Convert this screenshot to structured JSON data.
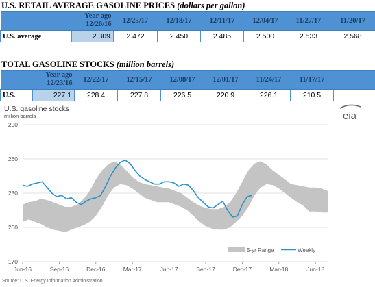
{
  "prices": {
    "title_main": "U.S. RETAIL AVERAGE GASOLINE PRICES",
    "title_unit": "(dollars per gallon)",
    "year_ago_label": "Year ago",
    "year_ago_date": "12/26/16",
    "dates": [
      "12/25/17",
      "12/18/17",
      "12/11/17",
      "12/04/17",
      "11/27/17",
      "11/20/17"
    ],
    "row_label": "U.S. average",
    "year_ago_value": "2.309",
    "values": [
      "2.472",
      "2.450",
      "2.485",
      "2.500",
      "2.533",
      "2.568"
    ]
  },
  "stocks": {
    "title_main": "TOTAL GASOLINE STOCKS",
    "title_unit": "(million barrels)",
    "year_ago_label": "Year ago",
    "year_ago_date": "12/23/16",
    "dates": [
      "12/22/17",
      "12/15/17",
      "12/08/17",
      "12/01/17",
      "11/24/17",
      "11/17/17"
    ],
    "row_label": "U.S.",
    "year_ago_value": "227.1",
    "values": [
      "228.4",
      "227.8",
      "226.5",
      "220.9",
      "226.1",
      "210.5"
    ]
  },
  "chart_data": {
    "type": "area",
    "title": "U.S. gasoline stocks",
    "subtitle": "million barrels",
    "logo": "eia",
    "source": "Source: U.S. Energy Information Administration",
    "ylim": [
      170,
      290
    ],
    "yticks": [
      170,
      200,
      230,
      260,
      290
    ],
    "xlim": [
      0,
      25
    ],
    "x_unit": "months since Jun-16",
    "xticks": [
      {
        "x": 0,
        "label": "Jun-16"
      },
      {
        "x": 3,
        "label": "Sep-16"
      },
      {
        "x": 6,
        "label": "Dec-16"
      },
      {
        "x": 9,
        "label": "Mar-17"
      },
      {
        "x": 12,
        "label": "Jun-17"
      },
      {
        "x": 15,
        "label": "Sep-17"
      },
      {
        "x": 18,
        "label": "Dec-17"
      },
      {
        "x": 21,
        "label": "Mar-18"
      },
      {
        "x": 24,
        "label": "Jun-18"
      }
    ],
    "grid": true,
    "legend_position": "bottom-right",
    "colors": {
      "range": "#c4c4c4",
      "weekly": "#2a93c9",
      "grid": "#d6d6d6",
      "table_header": "#4f92d3"
    },
    "series": [
      {
        "name": "5-yr Range",
        "kind": "band",
        "x": [
          0,
          0.5,
          1,
          1.5,
          2,
          2.5,
          3,
          3.5,
          4,
          4.5,
          5,
          5.5,
          6,
          6.5,
          7,
          7.5,
          8,
          8.5,
          9,
          9.5,
          10,
          10.5,
          11,
          11.5,
          12,
          12.5,
          13,
          13.5,
          14,
          14.5,
          15,
          15.5,
          16,
          16.5,
          17,
          17.5,
          18,
          18.5,
          19,
          19.5,
          20,
          20.5,
          21,
          21.5,
          22,
          22.5,
          23,
          23.5,
          24,
          24.5,
          25
        ],
        "low": [
          205,
          207,
          205,
          203,
          200,
          198,
          197,
          196,
          198,
          200,
          202,
          205,
          210,
          218,
          228,
          235,
          238,
          237,
          234,
          230,
          226,
          224,
          222,
          222,
          222,
          220,
          218,
          215,
          210,
          205,
          201,
          199,
          198,
          198,
          200,
          205,
          210,
          218,
          228,
          235,
          238,
          237,
          234,
          230,
          226,
          222,
          219,
          214,
          214,
          213,
          213
        ],
        "high": [
          220,
          222,
          223,
          225,
          224,
          222,
          220,
          218,
          218,
          220,
          225,
          232,
          242,
          250,
          255,
          258,
          255,
          250,
          244,
          240,
          238,
          237,
          236,
          235,
          234,
          232,
          230,
          226,
          222,
          219,
          217,
          216,
          216,
          218,
          222,
          230,
          240,
          250,
          256,
          258,
          255,
          250,
          246,
          242,
          238,
          237,
          236,
          235,
          235,
          234,
          232
        ]
      },
      {
        "name": "Weekly",
        "kind": "line",
        "x": [
          0,
          0.4,
          0.8,
          1.2,
          1.6,
          2.0,
          2.4,
          2.8,
          3.2,
          3.6,
          4.0,
          4.4,
          4.8,
          5.2,
          5.6,
          6.0,
          6.4,
          6.8,
          7.2,
          7.6,
          8.0,
          8.4,
          8.8,
          9.2,
          9.6,
          10.0,
          10.4,
          10.8,
          11.2,
          11.6,
          12.0,
          12.4,
          12.8,
          13.2,
          13.6,
          14.0,
          14.4,
          14.8,
          15.2,
          15.6,
          16.0,
          16.4,
          16.8,
          17.2,
          17.6,
          18.0,
          18.4,
          18.8
        ],
        "y": [
          237,
          236,
          238,
          239,
          240,
          235,
          230,
          227,
          228,
          225,
          226,
          222,
          220,
          223,
          225,
          226,
          228,
          236,
          245,
          252,
          257,
          259,
          256,
          250,
          245,
          242,
          240,
          238,
          238,
          240,
          240,
          239,
          236,
          238,
          237,
          232,
          226,
          222,
          218,
          217,
          220,
          223,
          215,
          209,
          210,
          220,
          227,
          228
        ]
      }
    ]
  }
}
